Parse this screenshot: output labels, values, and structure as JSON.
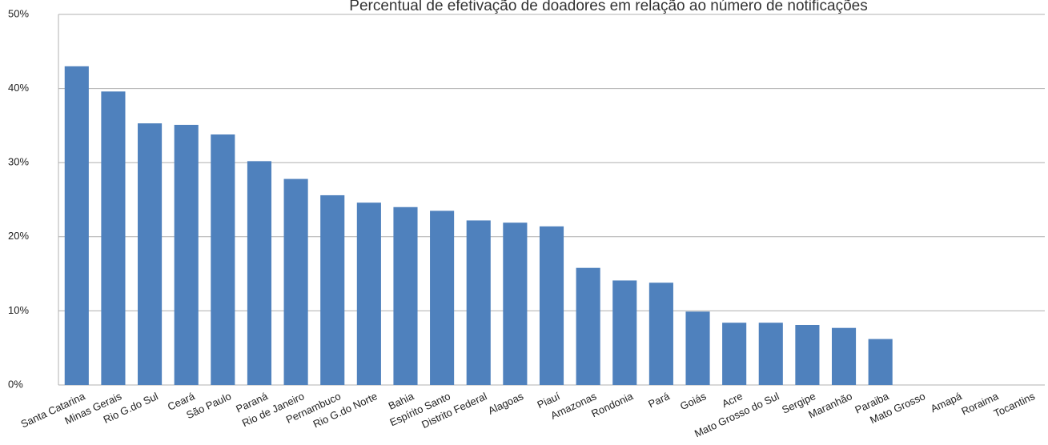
{
  "chart_data": {
    "type": "bar",
    "title": "Percentual de efetivação de doadores em relação ao número de notificações",
    "categories": [
      "Santa Catarina",
      "Minas Gerais",
      "Rio G.do Sul",
      "Ceará",
      "São Paulo",
      "Paraná",
      "Rio de Janeiro",
      "Pernambuco",
      "Rio G.do Norte",
      "Bahia",
      "Espírito Santo",
      "Distrito Federal",
      "Alagoas",
      "Piauí",
      "Amazonas",
      "Rondonia",
      "Pará",
      "Goiás",
      "Acre",
      "Mato Grosso do Sul",
      "Sergipe",
      "Maranhão",
      "Paraiba",
      "Mato Grosso",
      "Amapá",
      "Roraima",
      "Tocantins"
    ],
    "values": [
      43.0,
      39.6,
      35.3,
      35.1,
      33.8,
      30.2,
      27.8,
      25.6,
      24.6,
      24.0,
      23.5,
      22.2,
      21.9,
      21.4,
      15.8,
      14.1,
      13.8,
      9.9,
      8.4,
      8.4,
      8.1,
      7.7,
      6.2,
      0,
      0,
      0,
      0
    ],
    "color": "#4f81bd",
    "ylim": [
      0,
      50
    ],
    "yticks": [
      {
        "value": 0,
        "label": "0%"
      },
      {
        "value": 10,
        "label": "10%"
      },
      {
        "value": 20,
        "label": "20%"
      },
      {
        "value": 30,
        "label": "30%"
      },
      {
        "value": 40,
        "label": "40%"
      },
      {
        "value": 50,
        "label": "50%"
      }
    ],
    "grid": true
  }
}
